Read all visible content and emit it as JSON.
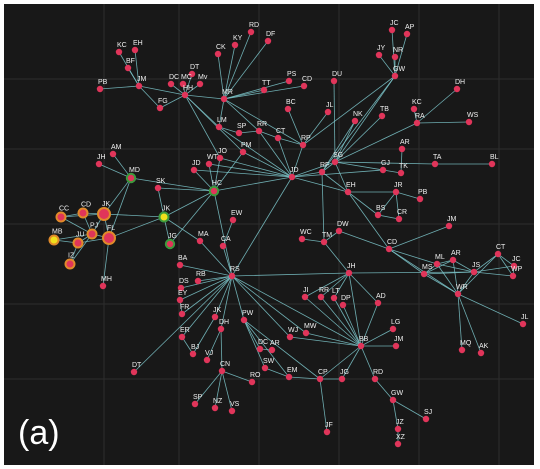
{
  "figure": {
    "panel_label": "(a)",
    "colors": {
      "background": "#181818",
      "grid": "#2e2e2e",
      "edge": "#7ec8cc",
      "node": "#e0355a",
      "highlight_ring": "#e08a2a",
      "highlight_fill": "#f0e01c",
      "green_ring": "#3c9a3c"
    }
  },
  "nodes": [
    {
      "id": "RD",
      "label": "RD"
    },
    {
      "id": "KY",
      "label": "KY"
    },
    {
      "id": "DF",
      "label": "DF"
    },
    {
      "id": "CK",
      "label": "CK"
    },
    {
      "id": "JC1",
      "label": "JC"
    },
    {
      "id": "AP",
      "label": "AP"
    },
    {
      "id": "JY",
      "label": "JY"
    },
    {
      "id": "NR",
      "label": "NR"
    },
    {
      "id": "GW1",
      "label": "GW"
    },
    {
      "id": "KC1",
      "label": "KC"
    },
    {
      "id": "EH1",
      "label": "EH"
    },
    {
      "id": "BF",
      "label": "BF"
    },
    {
      "id": "PB",
      "label": "PB"
    },
    {
      "id": "JM1",
      "label": "JM"
    },
    {
      "id": "DT1",
      "label": "DT"
    },
    {
      "id": "DC",
      "label": "DC"
    },
    {
      "id": "MC",
      "label": "MC"
    },
    {
      "id": "MV",
      "label": "Mv"
    },
    {
      "id": "HH",
      "label": "HH"
    },
    {
      "id": "TT",
      "label": "TT"
    },
    {
      "id": "PS",
      "label": "PS"
    },
    {
      "id": "CD1",
      "label": "CD"
    },
    {
      "id": "DU",
      "label": "DU"
    },
    {
      "id": "DH",
      "label": "DH"
    },
    {
      "id": "FG",
      "label": "FG"
    },
    {
      "id": "MR",
      "label": "MR"
    },
    {
      "id": "BC",
      "label": "BC"
    },
    {
      "id": "JL1",
      "label": "JL"
    },
    {
      "id": "NK",
      "label": "NK"
    },
    {
      "id": "TB",
      "label": "TB"
    },
    {
      "id": "KC2",
      "label": "KC"
    },
    {
      "id": "RA",
      "label": "RA"
    },
    {
      "id": "WS",
      "label": "WS"
    },
    {
      "id": "LM",
      "label": "LM"
    },
    {
      "id": "SP1",
      "label": "SP"
    },
    {
      "id": "RR",
      "label": "RR"
    },
    {
      "id": "CT1",
      "label": "CT"
    },
    {
      "id": "RP",
      "label": "RP"
    },
    {
      "id": "JH1",
      "label": "JH"
    },
    {
      "id": "AM",
      "label": "AM"
    },
    {
      "id": "MD",
      "label": "MD"
    },
    {
      "id": "AR1",
      "label": "AR"
    },
    {
      "id": "TA",
      "label": "TA"
    },
    {
      "id": "BL",
      "label": "BL"
    },
    {
      "id": "JD1",
      "label": "JD"
    },
    {
      "id": "WT",
      "label": "WT"
    },
    {
      "id": "JO",
      "label": "JO"
    },
    {
      "id": "PM",
      "label": "PM"
    },
    {
      "id": "SG",
      "label": "SG"
    },
    {
      "id": "GJ",
      "label": "GJ"
    },
    {
      "id": "TK",
      "label": "TK"
    },
    {
      "id": "JD2",
      "label": "JD"
    },
    {
      "id": "RF",
      "label": "RF"
    },
    {
      "id": "HC",
      "label": "HC"
    },
    {
      "id": "JRR",
      "label": "JR"
    },
    {
      "id": "SK",
      "label": "SK"
    },
    {
      "id": "EH2",
      "label": "EH"
    },
    {
      "id": "PB2",
      "label": "PB"
    },
    {
      "id": "CC",
      "label": "CC"
    },
    {
      "id": "CD2",
      "label": "CD"
    },
    {
      "id": "JKc",
      "label": "JK"
    },
    {
      "id": "JKb",
      "label": "JK"
    },
    {
      "id": "BS",
      "label": "BS"
    },
    {
      "id": "CR",
      "label": "CR"
    },
    {
      "id": "EW",
      "label": "EW"
    },
    {
      "id": "MB",
      "label": "MB"
    },
    {
      "id": "JU",
      "label": "JU"
    },
    {
      "id": "PJ",
      "label": "PJ"
    },
    {
      "id": "FL",
      "label": "FL"
    },
    {
      "id": "MA",
      "label": "MA"
    },
    {
      "id": "MH",
      "label": "MH"
    },
    {
      "id": "IZ",
      "label": "IZ"
    },
    {
      "id": "JG1",
      "label": "JG"
    },
    {
      "id": "CA",
      "label": "CA"
    },
    {
      "id": "WC",
      "label": "WC"
    },
    {
      "id": "TM",
      "label": "TM"
    },
    {
      "id": "DW",
      "label": "DW"
    },
    {
      "id": "JM2",
      "label": "JM"
    },
    {
      "id": "CD3",
      "label": "CD"
    },
    {
      "id": "BA",
      "label": "BA"
    },
    {
      "id": "RB",
      "label": "RB"
    },
    {
      "id": "RS",
      "label": "RS"
    },
    {
      "id": "DS",
      "label": "DS"
    },
    {
      "id": "EY",
      "label": "EY"
    },
    {
      "id": "JH2",
      "label": "JH"
    },
    {
      "id": "ML",
      "label": "ML"
    },
    {
      "id": "AR2",
      "label": "AR"
    },
    {
      "id": "CT2",
      "label": "CT"
    },
    {
      "id": "JC2",
      "label": "JC"
    },
    {
      "id": "MS",
      "label": "MS"
    },
    {
      "id": "JS",
      "label": "JS"
    },
    {
      "id": "WP",
      "label": "WP"
    },
    {
      "id": "JI",
      "label": "JI"
    },
    {
      "id": "RR2",
      "label": "RR"
    },
    {
      "id": "LT",
      "label": "LT"
    },
    {
      "id": "DP",
      "label": "DP"
    },
    {
      "id": "AD",
      "label": "AD"
    },
    {
      "id": "FR",
      "label": "FR"
    },
    {
      "id": "JK2",
      "label": "JK"
    },
    {
      "id": "PW",
      "label": "PW"
    },
    {
      "id": "DH2",
      "label": "DH"
    },
    {
      "id": "WJ",
      "label": "WJ"
    },
    {
      "id": "WR",
      "label": "WR"
    },
    {
      "id": "JL2",
      "label": "JL"
    },
    {
      "id": "ER",
      "label": "ER"
    },
    {
      "id": "MW",
      "label": "MW"
    },
    {
      "id": "BB",
      "label": "BB"
    },
    {
      "id": "LG",
      "label": "LG"
    },
    {
      "id": "JM3",
      "label": "JM"
    },
    {
      "id": "BJ",
      "label": "BJ"
    },
    {
      "id": "VJ",
      "label": "VJ"
    },
    {
      "id": "DC2",
      "label": "DC"
    },
    {
      "id": "AR3",
      "label": "AR"
    },
    {
      "id": "MQ",
      "label": "MQ"
    },
    {
      "id": "AK",
      "label": "AK"
    },
    {
      "id": "DT2",
      "label": "DT"
    },
    {
      "id": "CN",
      "label": "CN"
    },
    {
      "id": "SW",
      "label": "SW"
    },
    {
      "id": "EM",
      "label": "EM"
    },
    {
      "id": "RO",
      "label": "RO"
    },
    {
      "id": "CP",
      "label": "CP"
    },
    {
      "id": "JG2",
      "label": "JG"
    },
    {
      "id": "RD2",
      "label": "RD"
    },
    {
      "id": "SP2",
      "label": "SP"
    },
    {
      "id": "NZ",
      "label": "NZ"
    },
    {
      "id": "VS",
      "label": "VS"
    },
    {
      "id": "GW2",
      "label": "GW"
    },
    {
      "id": "SJ",
      "label": "SJ"
    },
    {
      "id": "JF",
      "label": "JF"
    },
    {
      "id": "JZ",
      "label": "JZ"
    },
    {
      "id": "XZ",
      "label": "XZ"
    }
  ]
}
